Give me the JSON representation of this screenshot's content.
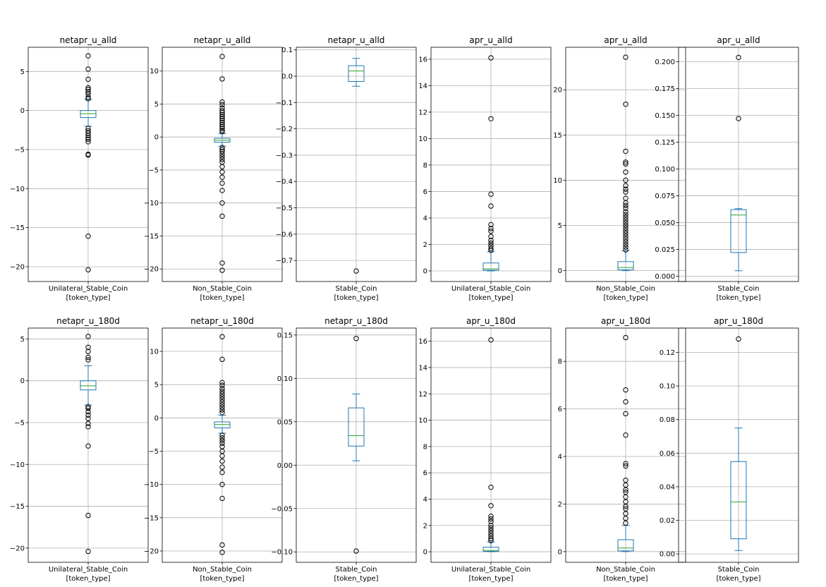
{
  "figure_title": "",
  "chart_data": [
    {
      "type": "boxplot",
      "title": "netapr_u_alld",
      "xlabel": "Unilateral_Stable_Coin",
      "xlabel2": "[token_type]",
      "ylim": [
        -21.9,
        8.1
      ],
      "yticks": [
        -20,
        -15,
        -10,
        -5,
        0,
        5
      ],
      "ytick_labels": [
        "−20",
        "−15",
        "−10",
        "−5",
        "0",
        "5"
      ],
      "grid": true,
      "box": {
        "whislo": -2.0,
        "q1": -0.9,
        "med": -0.4,
        "q3": 0.0,
        "whishi": 1.4
      },
      "fliers": [
        7.0,
        5.3,
        4.0,
        2.9,
        2.7,
        2.4,
        2.1,
        1.7,
        1.5,
        -2.3,
        -2.6,
        -2.9,
        -3.2,
        -3.5,
        -3.7,
        -4.0,
        -5.6,
        -5.7,
        -16.1,
        -20.4
      ]
    },
    {
      "type": "boxplot",
      "title": "netapr_u_alld",
      "xlabel": "Non_Stable_Coin",
      "xlabel2": "[token_type]",
      "ylim": [
        -21.9,
        13.6
      ],
      "yticks": [
        -20,
        -15,
        -10,
        -5,
        0,
        5,
        10
      ],
      "ytick_labels": [
        "−20",
        "−15",
        "−10",
        "−5",
        "0",
        "5",
        "10"
      ],
      "grid": true,
      "box": {
        "whislo": -1.4,
        "q1": -0.8,
        "med": -0.5,
        "q3": -0.2,
        "whishi": 0.5
      },
      "fliers": [
        12.2,
        8.8,
        5.3,
        4.9,
        4.4,
        4.0,
        3.7,
        3.4,
        3.1,
        2.8,
        2.5,
        2.2,
        1.9,
        1.6,
        1.3,
        1.0,
        0.8,
        -1.6,
        -1.9,
        -2.2,
        -2.6,
        -3.0,
        -3.4,
        -3.8,
        -4.5,
        -5.3,
        -6.1,
        -7.0,
        -8.1,
        -10.0,
        -12.0,
        -19.1,
        -20.2
      ]
    },
    {
      "type": "boxplot",
      "title": "netapr_u_alld",
      "xlabel": "Stable_Coin",
      "xlabel2": "[token_type]",
      "ylim": [
        -0.78,
        0.11
      ],
      "yticks": [
        -0.7,
        -0.6,
        -0.5,
        -0.4,
        -0.3,
        -0.2,
        -0.1,
        0.0,
        0.1
      ],
      "ytick_labels": [
        "−0.7",
        "−0.6",
        "−0.5",
        "−0.4",
        "−0.3",
        "−0.2",
        "−0.1",
        "0.0",
        "0.1"
      ],
      "grid": true,
      "box": {
        "whislo": -0.038,
        "q1": -0.02,
        "med": 0.02,
        "q3": 0.04,
        "whishi": 0.068
      },
      "fliers": [
        -0.74
      ]
    },
    {
      "type": "boxplot",
      "title": "apr_u_alld",
      "xlabel": "Unilateral_Stable_Coin",
      "xlabel2": "[token_type]",
      "ylim": [
        -0.8,
        16.9
      ],
      "yticks": [
        0,
        2,
        4,
        6,
        8,
        10,
        12,
        14,
        16
      ],
      "ytick_labels": [
        "0",
        "2",
        "4",
        "6",
        "8",
        "10",
        "12",
        "14",
        "16"
      ],
      "grid": true,
      "box": {
        "whislo": 0.0,
        "q1": 0.05,
        "med": 0.15,
        "q3": 0.6,
        "whishi": 1.45
      },
      "fliers": [
        16.1,
        11.5,
        5.8,
        4.9,
        3.5,
        3.2,
        3.0,
        2.6,
        2.3,
        2.1,
        1.9,
        1.7,
        1.55
      ]
    },
    {
      "type": "boxplot",
      "title": "apr_u_alld",
      "xlabel": "Non_Stable_Coin",
      "xlabel2": "[token_type]",
      "ylim": [
        -1.2,
        24.7
      ],
      "yticks": [
        0,
        5,
        10,
        15,
        20
      ],
      "ytick_labels": [
        "0",
        "5",
        "10",
        "15",
        "20"
      ],
      "grid": true,
      "box": {
        "whislo": 0.0,
        "q1": 0.1,
        "med": 0.35,
        "q3": 1.0,
        "whishi": 2.2
      },
      "fliers": [
        23.6,
        18.4,
        13.2,
        12.0,
        11.8,
        10.9,
        10.0,
        9.4,
        9.0,
        8.7,
        8.0,
        7.5,
        7.2,
        6.9,
        6.5,
        6.2,
        5.9,
        5.6,
        5.3,
        5.0,
        4.7,
        4.4,
        4.1,
        3.8,
        3.5,
        3.2,
        2.9,
        2.6,
        2.3
      ]
    },
    {
      "type": "boxplot",
      "title": "apr_u_alld",
      "xlabel": "Stable_Coin",
      "xlabel2": "[token_type]",
      "ylim": [
        -0.005,
        0.2135
      ],
      "yticks": [
        0.0,
        0.025,
        0.05,
        0.075,
        0.1,
        0.125,
        0.15,
        0.175,
        0.2
      ],
      "ytick_labels": [
        "0.000",
        "0.025",
        "0.050",
        "0.075",
        "0.100",
        "0.125",
        "0.150",
        "0.175",
        "0.200"
      ],
      "grid": true,
      "box": {
        "whislo": 0.005,
        "q1": 0.022,
        "med": 0.057,
        "q3": 0.062,
        "whishi": 0.063
      },
      "fliers": [
        0.204,
        0.147
      ]
    },
    {
      "type": "boxplot",
      "title": "netapr_u_180d",
      "xlabel": "Unilateral_Stable_Coin",
      "xlabel2": "[token_type]",
      "ylim": [
        -21.7,
        6.3
      ],
      "yticks": [
        -20,
        -15,
        -10,
        -5,
        0,
        5
      ],
      "ytick_labels": [
        "−20",
        "−15",
        "−10",
        "−5",
        "0",
        "5"
      ],
      "grid": true,
      "box": {
        "whislo": -2.9,
        "q1": -1.1,
        "med": -0.6,
        "q3": 0.0,
        "whishi": 1.8
      },
      "fliers": [
        5.3,
        4.0,
        3.5,
        2.8,
        2.5,
        -3.1,
        -3.3,
        -3.7,
        -4.1,
        -4.5,
        -5.1,
        -5.5,
        -7.8,
        -16.1,
        -20.4
      ]
    },
    {
      "type": "boxplot",
      "title": "netapr_u_180d",
      "xlabel": "Non_Stable_Coin",
      "xlabel2": "[token_type]",
      "ylim": [
        -21.7,
        13.5
      ],
      "yticks": [
        -20,
        -15,
        -10,
        -5,
        0,
        5,
        10
      ],
      "ytick_labels": [
        "−20",
        "−15",
        "−10",
        "−5",
        "0",
        "5",
        "10"
      ],
      "grid": true,
      "box": {
        "whislo": -2.3,
        "q1": -1.5,
        "med": -1.0,
        "q3": -0.6,
        "whishi": 0.4
      },
      "fliers": [
        12.2,
        8.8,
        5.3,
        4.9,
        4.4,
        4.0,
        3.6,
        3.2,
        2.8,
        2.4,
        2.0,
        1.6,
        1.2,
        0.8,
        -2.6,
        -3.0,
        -3.4,
        -3.8,
        -4.3,
        -5.0,
        -5.7,
        -6.5,
        -7.4,
        -8.2,
        -10.0,
        -12.1,
        -19.1,
        -20.2
      ]
    },
    {
      "type": "boxplot",
      "title": "netapr_u_180d",
      "xlabel": "Stable_Coin",
      "xlabel2": "[token_type]",
      "ylim": [
        -0.112,
        0.158
      ],
      "yticks": [
        -0.1,
        -0.05,
        0.0,
        0.05,
        0.1,
        0.15
      ],
      "ytick_labels": [
        "−0.10",
        "−0.05",
        "0.00",
        "0.05",
        "0.10",
        "0.15"
      ],
      "grid": true,
      "box": {
        "whislo": 0.005,
        "q1": 0.022,
        "med": 0.034,
        "q3": 0.066,
        "whishi": 0.082
      },
      "fliers": [
        0.146,
        -0.099
      ]
    },
    {
      "type": "boxplot",
      "title": "apr_u_180d",
      "xlabel": "Unilateral_Stable_Coin",
      "xlabel2": "[token_type]",
      "ylim": [
        -0.8,
        17.0
      ],
      "yticks": [
        0,
        2,
        4,
        6,
        8,
        10,
        12,
        14,
        16
      ],
      "ytick_labels": [
        "0",
        "2",
        "4",
        "6",
        "8",
        "10",
        "12",
        "14",
        "16"
      ],
      "grid": true,
      "box": {
        "whislo": 0.0,
        "q1": 0.03,
        "med": 0.1,
        "q3": 0.35,
        "whishi": 0.75
      },
      "fliers": [
        16.1,
        4.9,
        3.5,
        2.7,
        2.5,
        2.3,
        2.0,
        1.8,
        1.6,
        1.4,
        1.2,
        1.0,
        0.85
      ]
    },
    {
      "type": "boxplot",
      "title": "apr_u_180d",
      "xlabel": "Non_Stable_Coin",
      "xlabel2": "[token_type]",
      "ylim": [
        -0.45,
        9.4
      ],
      "yticks": [
        0,
        2,
        4,
        6,
        8
      ],
      "ytick_labels": [
        "0",
        "2",
        "4",
        "6",
        "8"
      ],
      "grid": true,
      "box": {
        "whislo": 0.0,
        "q1": 0.03,
        "med": 0.15,
        "q3": 0.5,
        "whishi": 1.1
      },
      "fliers": [
        9.0,
        6.8,
        6.3,
        5.8,
        4.9,
        3.7,
        3.6,
        3.0,
        2.8,
        2.6,
        2.5,
        2.3,
        2.1,
        1.9,
        1.8,
        1.6,
        1.4,
        1.2
      ]
    },
    {
      "type": "boxplot",
      "title": "apr_u_180d",
      "xlabel": "Stable_Coin",
      "xlabel2": "[token_type]",
      "ylim": [
        -0.005,
        0.1345
      ],
      "yticks": [
        0.0,
        0.02,
        0.04,
        0.06,
        0.08,
        0.1,
        0.12
      ],
      "ytick_labels": [
        "0.00",
        "0.02",
        "0.04",
        "0.06",
        "0.08",
        "0.10",
        "0.12"
      ],
      "grid": true,
      "box": {
        "whislo": 0.002,
        "q1": 0.009,
        "med": 0.031,
        "q3": 0.055,
        "whishi": 0.075
      },
      "fliers": [
        0.128
      ]
    }
  ]
}
